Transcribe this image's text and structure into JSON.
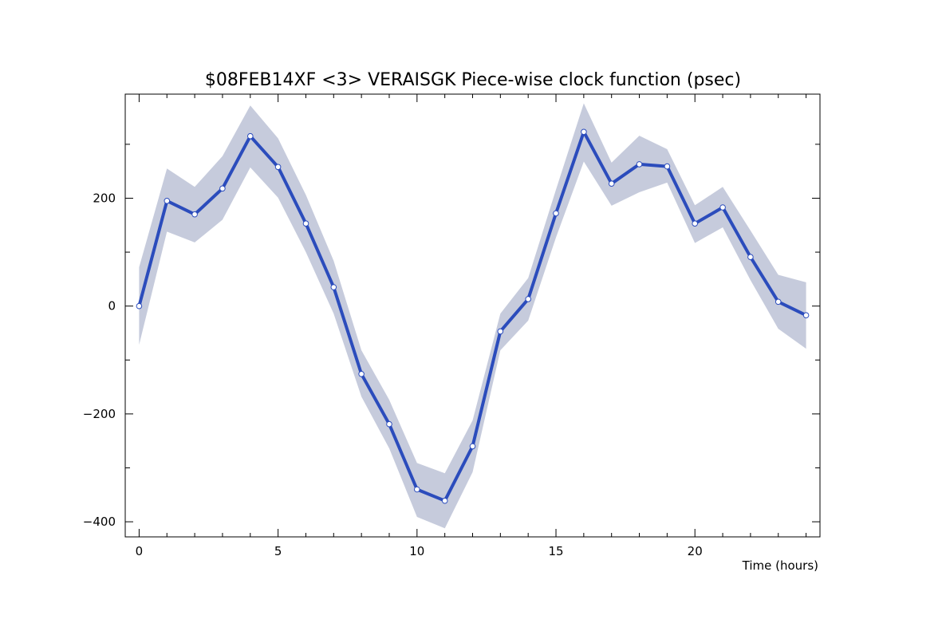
{
  "chart_data": {
    "type": "line",
    "title": "$08FEB14XF <3>  VERAISGK  Piece-wise clock function (psec)",
    "xlabel": "Time (hours)",
    "ylabel": "",
    "xlim": [
      -0.5,
      24.5
    ],
    "ylim": [
      -428,
      393
    ],
    "grid": false,
    "x_ticks": [
      0,
      5,
      10,
      15,
      20
    ],
    "x_tick_labels": [
      "0",
      "5",
      "10",
      "15",
      "20"
    ],
    "y_ticks": [
      -400,
      -200,
      0,
      200
    ],
    "y_tick_labels": [
      "−400",
      "−200",
      "0",
      "200"
    ],
    "x": [
      0,
      1,
      2,
      3,
      4,
      5,
      6,
      7,
      8,
      9,
      10,
      11,
      12,
      13,
      14,
      15,
      16,
      17,
      18,
      19,
      20,
      21,
      22,
      23,
      24
    ],
    "series": [
      {
        "values": [
          0,
          195,
          170,
          218,
          315,
          258,
          153,
          35,
          -126,
          -219,
          -340,
          -361,
          -260,
          -47,
          13,
          172,
          323,
          227,
          263,
          259,
          153,
          183,
          91,
          8,
          -17
        ]
      }
    ],
    "band_upper": [
      72,
      255,
      221,
      278,
      372,
      311,
      206,
      84,
      -82,
      -174,
      -291,
      -310,
      -212,
      -14,
      52,
      216,
      376,
      266,
      316,
      291,
      187,
      221,
      140,
      58,
      44
    ],
    "band_lower": [
      -72,
      138,
      118,
      160,
      257,
      201,
      100,
      -14,
      -168,
      -264,
      -391,
      -412,
      -308,
      -82,
      -27,
      127,
      268,
      186,
      211,
      229,
      117,
      146,
      48,
      -42,
      -79
    ],
    "colors": {
      "line": "#2b4cbc",
      "band": "#c6cbdc",
      "marker_fill": "#ffffff",
      "axis": "#000000"
    }
  }
}
